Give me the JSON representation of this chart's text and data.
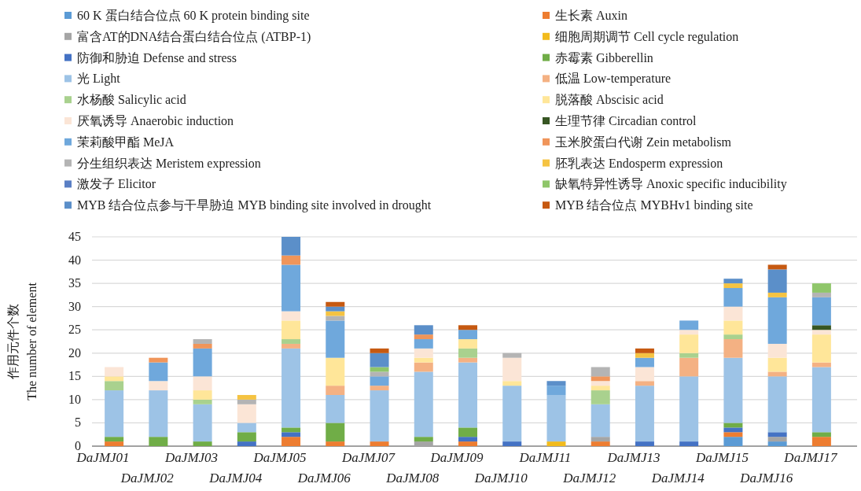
{
  "chart_data": {
    "type": "bar",
    "stacked": true,
    "ylabel": "作用元件个数\nThe number of element",
    "categories": [
      "DaJMJ01",
      "DaJMJ02",
      "DaJMJ03",
      "DaJMJ04",
      "DaJMJ05",
      "DaJMJ06",
      "DaJMJ07",
      "DaJMJ08",
      "DaJMJ09",
      "DaJMJ10",
      "DaJMJ11",
      "DaJMJ12",
      "DaJMJ13",
      "DaJMJ14",
      "DaJMJ15",
      "DaJMJ16",
      "DaJMJ17"
    ],
    "ylim": [
      0,
      45
    ],
    "yticks": [
      0,
      5,
      10,
      15,
      20,
      25,
      30,
      35,
      40,
      45
    ],
    "grid": "y",
    "legend": "top",
    "series": [
      {
        "name": "60 K 蛋白结合位点 60 K protein binding site",
        "color": "#5b9bd5",
        "values": [
          0,
          0,
          0,
          0,
          0,
          0,
          0,
          0,
          0,
          0,
          0,
          0,
          0,
          0,
          2,
          1,
          0
        ]
      },
      {
        "name": "生长素 Auxin",
        "color": "#ed7d31",
        "values": [
          1,
          0,
          0,
          0,
          2,
          1,
          1,
          0,
          1,
          0,
          0,
          1,
          0,
          0,
          1,
          0,
          2
        ]
      },
      {
        "name": "富含AT的DNA结合蛋白结合位点 (ATBP-1)",
        "color": "#a5a5a5",
        "values": [
          0,
          0,
          0,
          0,
          0,
          0,
          0,
          1,
          0,
          0,
          0,
          1,
          0,
          0,
          0,
          1,
          0
        ]
      },
      {
        "name": "细胞周期调节 Cell cycle regulation",
        "color": "#f2bb1d",
        "values": [
          0,
          0,
          0,
          0,
          0,
          0,
          0,
          0,
          0,
          0,
          1,
          0,
          0,
          0,
          0,
          0,
          0
        ]
      },
      {
        "name": "防御和胁迫 Defense and stress",
        "color": "#4472c4",
        "values": [
          0,
          0,
          0,
          1,
          1,
          0,
          0,
          0,
          1,
          1,
          0,
          0,
          1,
          1,
          1,
          1,
          0
        ]
      },
      {
        "name": "赤霉素 Gibberellin",
        "color": "#70ad47",
        "values": [
          1,
          2,
          1,
          2,
          1,
          4,
          0,
          1,
          2,
          0,
          0,
          0,
          0,
          0,
          1,
          0,
          1
        ]
      },
      {
        "name": "光 Light",
        "color": "#9dc3e6",
        "values": [
          10,
          10,
          8,
          2,
          17,
          6,
          11,
          14,
          14,
          12,
          10,
          7,
          12,
          14,
          14,
          12,
          14
        ]
      },
      {
        "name": "低温 Low-temperature",
        "color": "#f4b183",
        "values": [
          0,
          0,
          0,
          0,
          1,
          2,
          1,
          2,
          1,
          0,
          0,
          0,
          1,
          4,
          4,
          1,
          1
        ]
      },
      {
        "name": "水杨酸 Salicylic acid",
        "color": "#a9d18e",
        "values": [
          2,
          0,
          1,
          0,
          1,
          0,
          0,
          0,
          2,
          0,
          0,
          3,
          0,
          1,
          1,
          0,
          0
        ]
      },
      {
        "name": "脱落酸 Abscisic acid",
        "color": "#ffe699",
        "values": [
          1,
          0,
          2,
          0,
          4,
          6,
          0,
          1,
          2,
          1,
          0,
          1,
          0,
          4,
          3,
          3,
          6
        ]
      },
      {
        "name": "厌氧诱导 Anaerobic induction",
        "color": "#fbe5d6",
        "values": [
          2,
          2,
          3,
          4,
          2,
          0,
          0,
          2,
          0,
          5,
          0,
          1,
          3,
          1,
          3,
          3,
          1
        ]
      },
      {
        "name": "生理节律 Circadian control",
        "color": "#375623",
        "values": [
          0,
          0,
          0,
          0,
          0,
          0,
          0,
          0,
          0,
          0,
          0,
          0,
          0,
          0,
          0,
          0,
          1
        ]
      },
      {
        "name": "茉莉酸甲酯 MeJA",
        "color": "#6fa8dc",
        "values": [
          0,
          4,
          6,
          0,
          10,
          8,
          2,
          2,
          2,
          0,
          2,
          0,
          2,
          2,
          4,
          10,
          6
        ]
      },
      {
        "name": "玉米胶蛋白代谢 Zein metabolism",
        "color": "#f0955a",
        "values": [
          0,
          1,
          1,
          0,
          2,
          0,
          0,
          1,
          0,
          0,
          0,
          1,
          0,
          0,
          0,
          0,
          0
        ]
      },
      {
        "name": "分生组织表达 Meristem expression",
        "color": "#b4b4b4",
        "values": [
          0,
          0,
          1,
          1,
          0,
          1,
          1,
          0,
          0,
          1,
          0,
          2,
          0,
          0,
          0,
          0,
          1
        ]
      },
      {
        "name": "胚乳表达 Endosperm expression",
        "color": "#f5c342",
        "values": [
          0,
          0,
          0,
          1,
          0,
          1,
          0,
          0,
          0,
          0,
          0,
          0,
          1,
          0,
          1,
          1,
          0
        ]
      },
      {
        "name": "激发子 Elicitor",
        "color": "#5a7fc4",
        "values": [
          0,
          0,
          0,
          0,
          0,
          0,
          0,
          0,
          0,
          0,
          0,
          0,
          0,
          0,
          0,
          0,
          0
        ]
      },
      {
        "name": "缺氧特异性诱导 Anoxic specific inducibility",
        "color": "#8fc66a",
        "values": [
          0,
          0,
          0,
          0,
          0,
          0,
          1,
          0,
          0,
          0,
          0,
          0,
          0,
          0,
          0,
          0,
          2
        ]
      },
      {
        "name": "MYB 结合位点参与干旱胁迫 MYB binding site involved in drought",
        "color": "#5b8fc9",
        "values": [
          0,
          0,
          0,
          0,
          4,
          1,
          3,
          2,
          0,
          0,
          1,
          0,
          0,
          0,
          1,
          5,
          0
        ]
      },
      {
        "name": "MYB 结合位点 MYBHv1 binding site",
        "color": "#c65911",
        "values": [
          0,
          0,
          0,
          0,
          0,
          1,
          1,
          0,
          1,
          0,
          0,
          0,
          1,
          0,
          0,
          1,
          0
        ]
      }
    ]
  }
}
